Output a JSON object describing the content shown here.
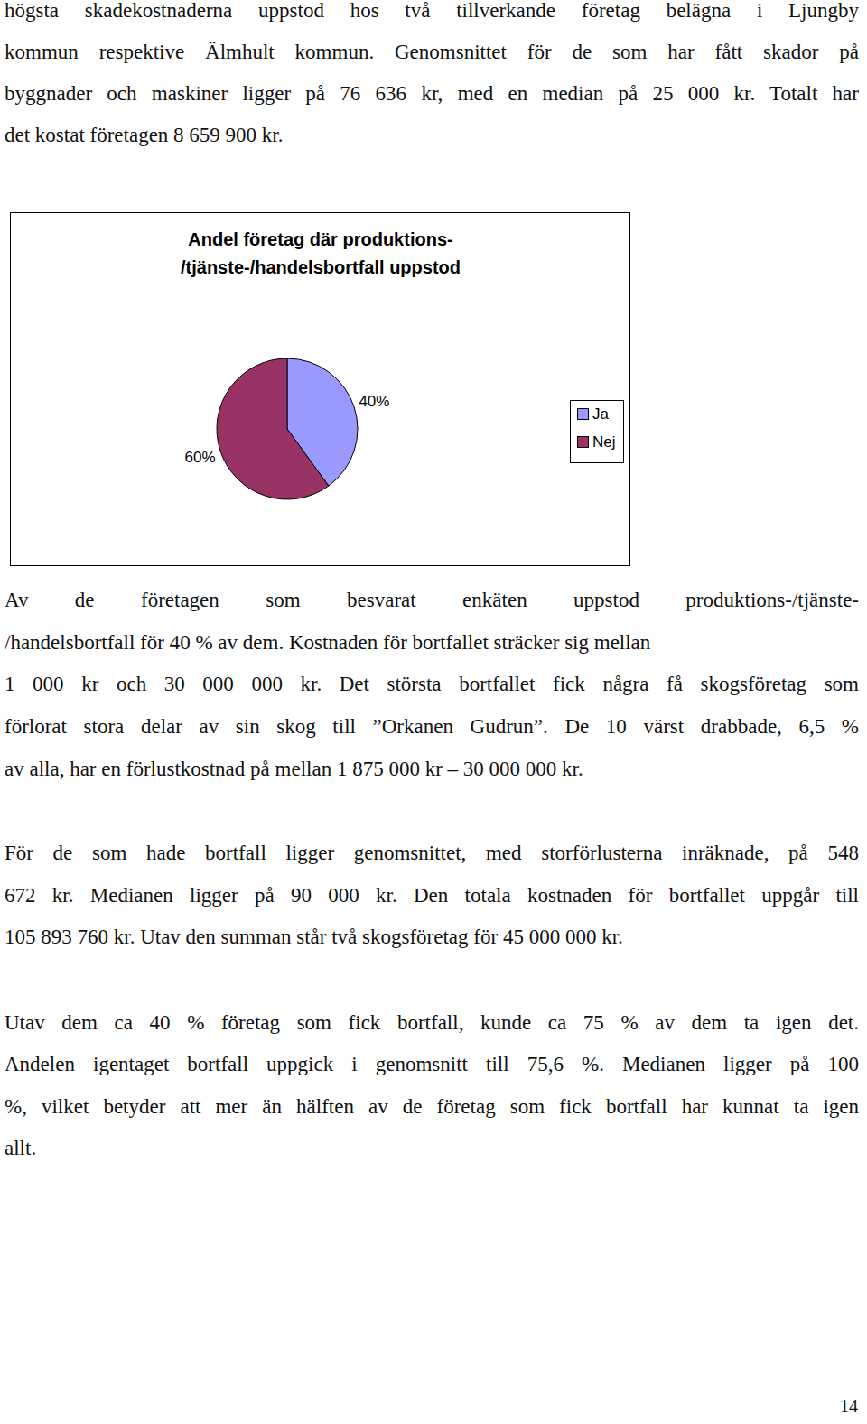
{
  "paragraphs": [
    {
      "lines": [
        "högsta skadekostnaderna uppstod hos två tillverkande företag belägna i Ljungby",
        "kommun respektive Älmhult kommun. Genomsnittet för de som har fått skador på",
        "byggnader och maskiner ligger på 76 636 kr, med en median på 25 000 kr. Totalt har",
        "det kostat företagen 8 659 900 kr."
      ]
    },
    {
      "lines": [
        "Av de företagen som besvarat enkäten uppstod produktions-/tjänste-",
        "/handelsbortfall för 40 % av dem. Kostnaden för bortfallet sträcker sig mellan",
        "1 000 kr och 30 000 000 kr. Det största bortfallet fick några få skogsföretag som",
        "förlorat stora delar av sin skog till ”Orkanen Gudrun”. De 10 värst drabbade, 6,5 %",
        "av alla, har en förlustkostnad på mellan 1 875 000 kr – 30 000 000 kr."
      ]
    },
    {
      "lines": [
        "För de som hade bortfall ligger genomsnittet, med storförlusterna inräknade, på 548",
        "672 kr. Medianen ligger på 90 000 kr. Den totala kostnaden för bortfallet uppgår till",
        "105 893 760 kr. Utav den summan står två skogsföretag för 45 000 000 kr."
      ]
    },
    {
      "lines": [
        "Utav dem ca 40 % företag som fick bortfall, kunde ca 75 % av dem ta igen det.",
        "Andelen igentaget bortfall uppgick i genomsnitt till 75,6 %. Medianen ligger på 100",
        "%, vilket betyder att mer än hälften av de företag som fick bortfall har kunnat ta igen",
        "allt."
      ]
    }
  ],
  "page_number": 14,
  "chart_data": {
    "type": "pie",
    "title": "Andel företag där produktions-/tjänste-/handelsbortfall uppstod",
    "categories": [
      "Ja",
      "Nej"
    ],
    "values": [
      40,
      60
    ],
    "value_labels": [
      "40%",
      "60%"
    ],
    "colors": [
      "#9999ff",
      "#993366"
    ],
    "data_labels": true,
    "legend": "right"
  }
}
